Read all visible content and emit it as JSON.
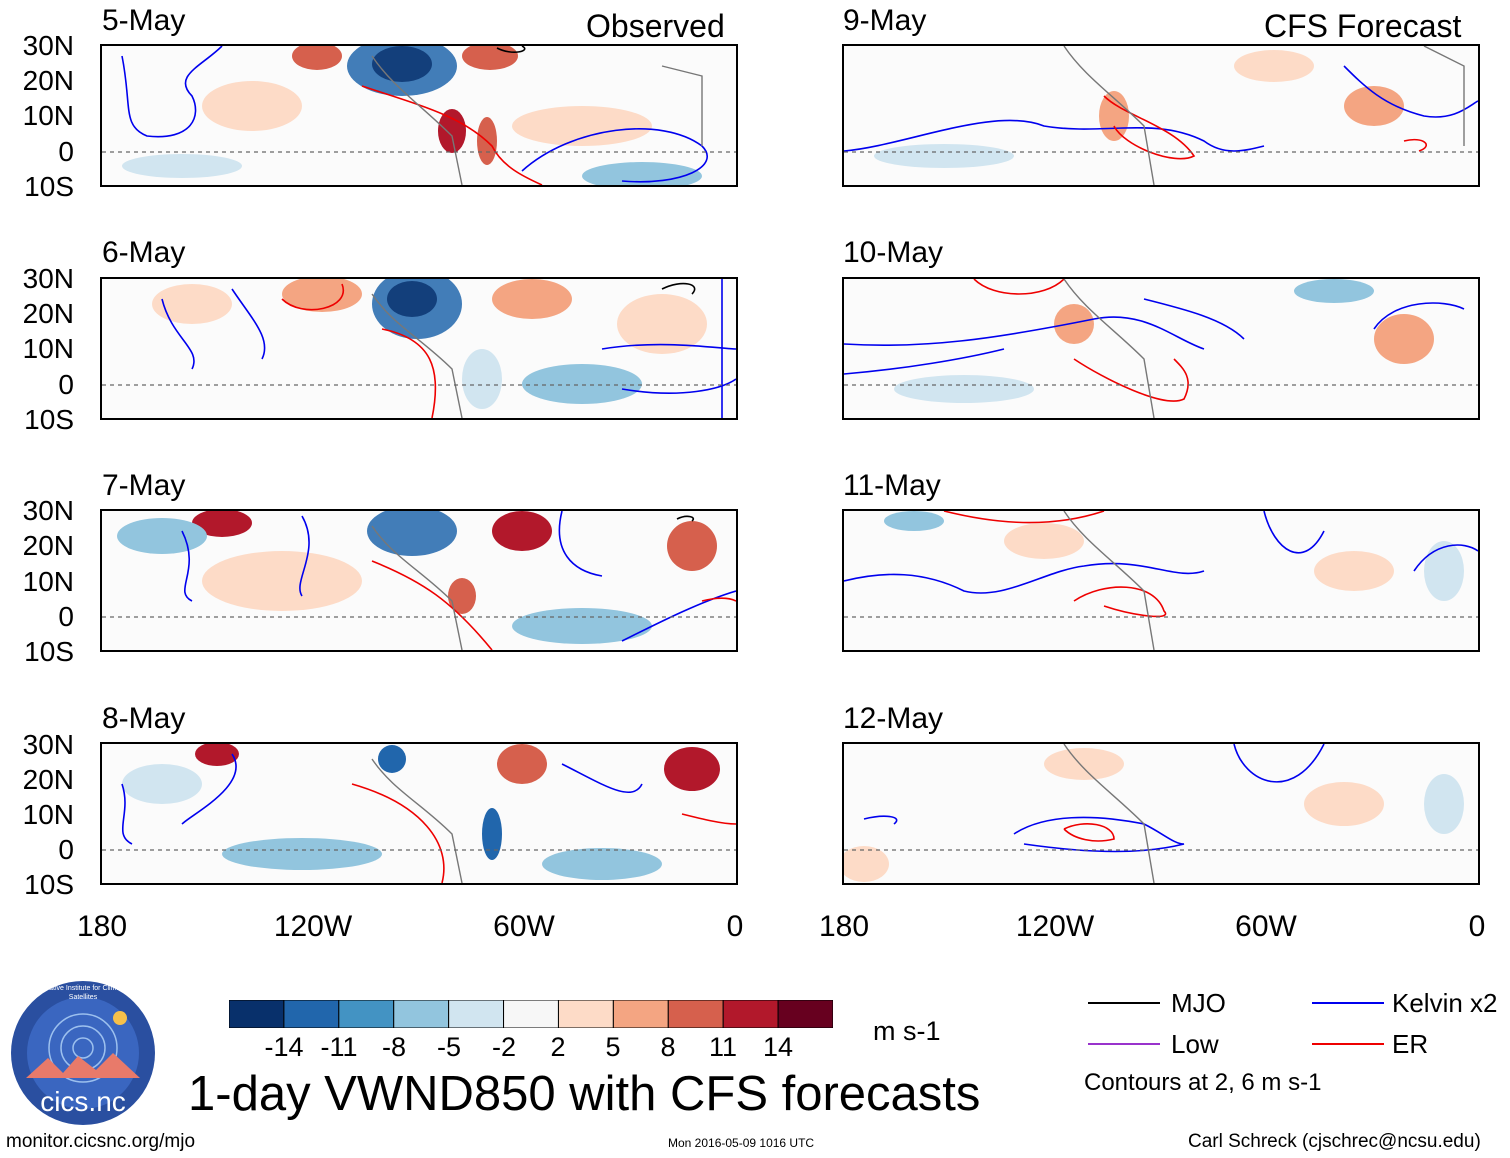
{
  "header": {
    "observed_label": "Observed",
    "forecast_label": "CFS Forecast"
  },
  "panels": {
    "observed": [
      "5-May",
      "6-May",
      "7-May",
      "8-May"
    ],
    "forecast": [
      "9-May",
      "10-May",
      "11-May",
      "12-May"
    ]
  },
  "lat_labels": [
    "30N",
    "20N",
    "10N",
    "0",
    "10S"
  ],
  "lon_labels": [
    "180",
    "120W",
    "60W",
    "0"
  ],
  "colorbar": {
    "labels": [
      "-14",
      "-11",
      "-8",
      "-5",
      "-2",
      "2",
      "5",
      "8",
      "11",
      "14"
    ],
    "colors": [
      "#08306b",
      "#2166ac",
      "#4393c3",
      "#92c5de",
      "#d1e5f0",
      "#f7f7f7",
      "#fddbc7",
      "#f4a582",
      "#d6604d",
      "#b2182b",
      "#67001f"
    ],
    "units": "m s-1"
  },
  "legend": {
    "items": [
      {
        "label": "MJO",
        "color": "#000000"
      },
      {
        "label": "Kelvin x2",
        "color": "#0000ee"
      },
      {
        "label": "Low",
        "color": "#9933cc"
      },
      {
        "label": "ER",
        "color": "#ee0000"
      }
    ],
    "note": "Contours at 2, 6 m s-1"
  },
  "logo": {
    "text": "cics.nc",
    "ring_text": "Cooperative Institute for Climate and Satellites"
  },
  "title": "1-day VWND850 with CFS forecasts",
  "footer": {
    "url": "monitor.cicsnc.org/mjo",
    "timestamp": "Mon 2016-05-09 1016 UTC",
    "author": "Carl Schreck (cjschrec@ncsu.edu)"
  }
}
